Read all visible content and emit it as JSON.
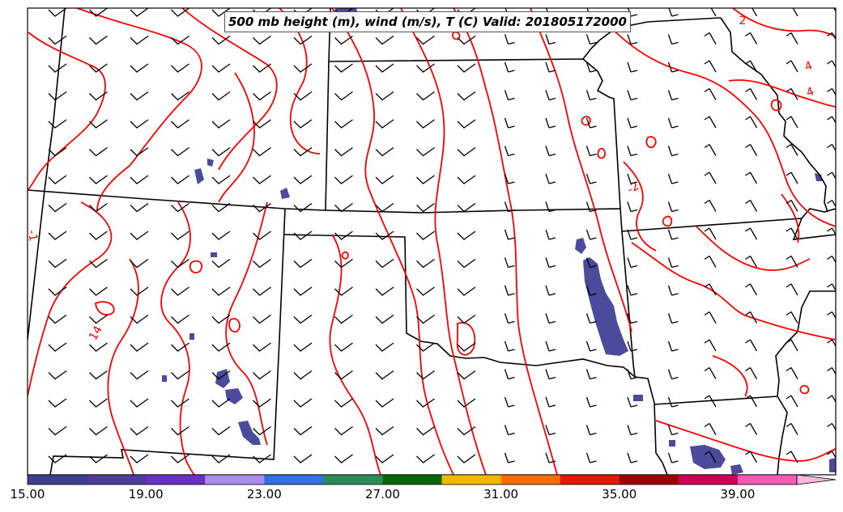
{
  "map": {
    "title": "500 mb height (m), wind (m/s), T (C) Valid: 201805172000",
    "contour_color": "#ff0000",
    "boundary_color": "#000000",
    "barb_color": "#000000",
    "shading_color": "#4b4b9c",
    "contour_labels": [
      {
        "text": "2",
        "rot": 0
      },
      {
        "text": "4",
        "rot": -20
      },
      {
        "text": "4",
        "rot": -20
      },
      {
        "text": "-2",
        "rot": -30
      },
      {
        "text": "-1",
        "rot": 80
      },
      {
        "text": "14",
        "rot": -60
      }
    ]
  },
  "colorbar": {
    "min": 15,
    "max": 41,
    "step": 2,
    "extend": "max",
    "colors": [
      "#3f3f8f",
      "#4e3c9c",
      "#6a2fc4",
      "#a98cf2",
      "#3270e6",
      "#2e8b57",
      "#056605",
      "#f0b800",
      "#ff6d00",
      "#e01800",
      "#9e0000",
      "#cc0055",
      "#f25ab4"
    ],
    "extension_color": "#f7b6de",
    "tick_labels": [
      "15.00",
      "19.00",
      "23.00",
      "27.00",
      "31.00",
      "35.00",
      "39.00"
    ]
  }
}
